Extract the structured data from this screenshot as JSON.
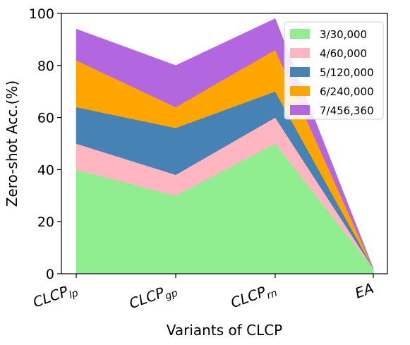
{
  "chart_data": {
    "type": "area",
    "stacked": true,
    "categories": [
      "CLCP",
      "CLCP",
      "CLCP",
      "EA"
    ],
    "category_subscripts": [
      "lp",
      "gp",
      "rn",
      ""
    ],
    "series": [
      {
        "name": "3/30,000",
        "values": [
          40,
          30,
          50,
          2
        ],
        "color": "#90ee90"
      },
      {
        "name": "4/60,000",
        "values": [
          10,
          8,
          10,
          0
        ],
        "color": "#ffb6c1"
      },
      {
        "name": "5/120,000",
        "values": [
          14,
          18,
          10,
          0
        ],
        "color": "#4682b4"
      },
      {
        "name": "6/240,000",
        "values": [
          18,
          8,
          16,
          0
        ],
        "color": "#ffa500"
      },
      {
        "name": "7/456,360",
        "values": [
          12,
          16,
          12,
          0
        ],
        "color": "#b266e0"
      }
    ],
    "title": "",
    "xlabel": "Variants of CLCP",
    "ylabel": "Zero-shot Acc.(%)",
    "ylim": [
      0,
      100
    ],
    "yticks": [
      "0",
      "20",
      "40",
      "60",
      "80",
      "100"
    ],
    "grid": false,
    "legend_position": "top-right"
  }
}
